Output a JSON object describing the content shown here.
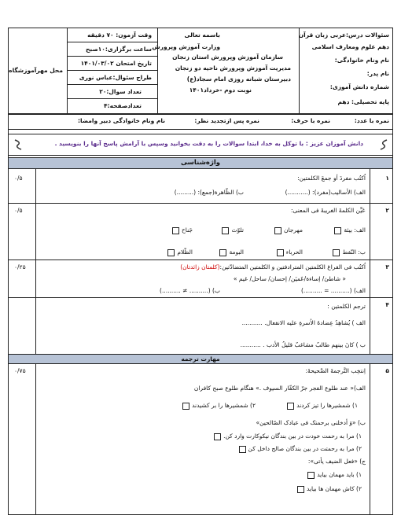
{
  "header": {
    "course": "سئوالات درس:عربی زبان قرآن",
    "grade": "دهم علوم ومعارف اسلامی",
    "name": "نام ونام خانوادگی:",
    "father": "نام پدر:",
    "student_no": "شماره دانش آموزی:",
    "level": "پایه تحصیلی: دهم",
    "bismillah": "باسمه تعالی",
    "ministry": "وزارت آموزش وپرورش",
    "org": "سازمان آموزش وپرورش استان زنجان",
    "district": "مدیریت آموزش وپرورش ناحیه دو زنجان",
    "school": "دبیرستان شبانه روزی امام سجاد(ع)",
    "term": "نوبت دوم -خرداد۱۴۰۱",
    "duration": "وقت آزمون: ۷۰ دقیقه",
    "time": "ساعت برگزاری:۱۰صبح",
    "date": "تاریخ امتحان ۱۴۰۱/۰۳/۰۲",
    "designer": "طراح سئوال:عباس نوری",
    "question_count": "تعداد سوال:۲۰",
    "page_count": "تعدادصفحه:۴",
    "stamp": "محل مهرآموزشگاه"
  },
  "grades": [
    "نمره با عدد:",
    "نمره با حرف:",
    "نمره پس ازتجدید نظر:",
    "نام ونام خانوادگی دبیر وامضا:"
  ],
  "instruction": "دانش آموزان عزیز : با توکل به خدا، ابتدا سوالات را به دقت بخوانید وسپس با آرامش پاسخ آنها را بنویسید .",
  "sections": [
    "واژه‌شناسی",
    "مهارت ترجمه"
  ],
  "questions": [
    {
      "number": "۱",
      "score": "۰/۵",
      "prompt": "اُکتُب مفردَ أو جمعَ الکلمتین:",
      "lines": [
        "الف) الأسالیب(مفرد): (...........)",
        "ب) الظّاهرة(جمع): (.........)"
      ]
    },
    {
      "number": "۲",
      "score": "۰/۵",
      "prompt": "عَیِّن الکلمةَ الغریبةَ فی المعنی:",
      "row_a": [
        "الف: بیئة",
        "مهرجان",
        "تلوّث",
        "جَناح"
      ],
      "row_b": [
        "ب: النّفط",
        "الحرباء",
        "البومة",
        "الظّلام"
      ]
    },
    {
      "number": "۳",
      "score": "۰/۲۵",
      "prompt": "اُکتُب فی الفراغ الکلمتین المترادفتین و الکلمتین المتضادّتین:",
      "prompt_red": "(کلمتان زائدتان)",
      "words": "« شاطئ/ إساءة/عَمیَن/ إحسان/ ساحل/ غیم »",
      "lines": [
        "الف) (.......... = ..........)",
        "ب) (.......... ≠ ..........)"
      ]
    },
    {
      "number": "۴",
      "prompt": "ترجم الکلمتین :",
      "lines": [
        "الف ) یُشاهِدُ عِضادهُ الاُسرةِ علیه الانفعال. ...........",
        "ب ) کانَ بینهم طالبٌ مشاغبٌ قلیلُ الأدب . ..........."
      ]
    },
    {
      "number": "۵",
      "score": "۰/۷۵",
      "prompt": "اِنتخِب التَّرجمةَ الصَّحیحةَ:",
      "lines": [
        "الف)« عند طلوع الفجر جرّ الکفّار السیوف .» هنگام طلوع صبح کافران",
        "۱) شمشیرها را تیز کردند",
        "۲) شمشیرها را بر کشیدند",
        "ب) «وَ أدخلنی برحمتک فی عبادک الصّالحین»",
        "۱) مرا به رحمت خودت در بین بندگان نیکوکارت وارد کن.",
        "۲) مرا به رحمتت در بین بندگان صالح داخل کن",
        "ج) «فعل الضیف یأتی»:",
        "۱) باید مهمان بیاید",
        "۲) کاش مهمان ها بیاید"
      ]
    }
  ]
}
